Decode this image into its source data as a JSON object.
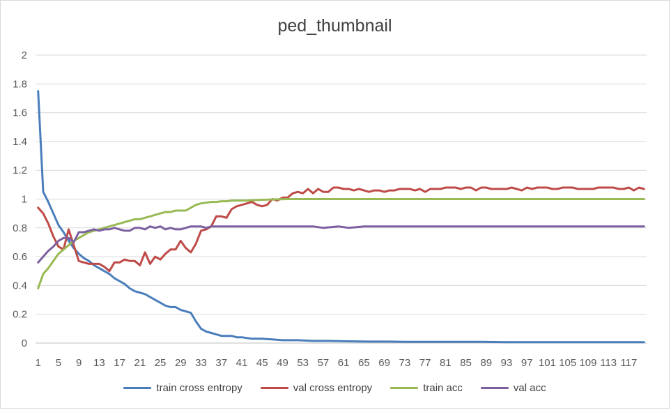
{
  "chart_data": {
    "type": "line",
    "title": "ped_thumbnail",
    "xlabel": "",
    "ylabel": "",
    "ylim": [
      0,
      2
    ],
    "yticks": [
      "0",
      "0.2",
      "0.4",
      "0.6",
      "0.8",
      "1",
      "1.2",
      "1.4",
      "1.6",
      "1.8",
      "2"
    ],
    "xtick_labels": [
      "1",
      "5",
      "9",
      "13",
      "17",
      "21",
      "25",
      "29",
      "33",
      "37",
      "41",
      "45",
      "49",
      "53",
      "57",
      "61",
      "65",
      "69",
      "73",
      "77",
      "81",
      "85",
      "89",
      "93",
      "97",
      "101",
      "105",
      "109",
      "113",
      "117"
    ],
    "x_start": 1,
    "x_end": 120,
    "grid": true,
    "legend_position": "bottom",
    "series": [
      {
        "name": "train cross entropy",
        "color": "#4a7ebb",
        "points": [
          [
            1,
            1.75
          ],
          [
            2,
            1.05
          ],
          [
            3,
            0.98
          ],
          [
            4,
            0.9
          ],
          [
            5,
            0.82
          ],
          [
            6,
            0.77
          ],
          [
            7,
            0.71
          ],
          [
            8,
            0.66
          ],
          [
            9,
            0.62
          ],
          [
            10,
            0.59
          ],
          [
            11,
            0.57
          ],
          [
            12,
            0.54
          ],
          [
            13,
            0.52
          ],
          [
            14,
            0.5
          ],
          [
            15,
            0.48
          ],
          [
            16,
            0.45
          ],
          [
            17,
            0.43
          ],
          [
            18,
            0.41
          ],
          [
            19,
            0.38
          ],
          [
            20,
            0.36
          ],
          [
            21,
            0.35
          ],
          [
            22,
            0.34
          ],
          [
            23,
            0.32
          ],
          [
            24,
            0.3
          ],
          [
            25,
            0.28
          ],
          [
            26,
            0.26
          ],
          [
            27,
            0.25
          ],
          [
            28,
            0.25
          ],
          [
            29,
            0.23
          ],
          [
            30,
            0.22
          ],
          [
            31,
            0.21
          ],
          [
            32,
            0.15
          ],
          [
            33,
            0.1
          ],
          [
            34,
            0.08
          ],
          [
            35,
            0.07
          ],
          [
            36,
            0.06
          ],
          [
            37,
            0.05
          ],
          [
            38,
            0.05
          ],
          [
            39,
            0.05
          ],
          [
            40,
            0.04
          ],
          [
            41,
            0.04
          ],
          [
            43,
            0.03
          ],
          [
            45,
            0.03
          ],
          [
            47,
            0.025
          ],
          [
            49,
            0.02
          ],
          [
            52,
            0.02
          ],
          [
            55,
            0.015
          ],
          [
            58,
            0.015
          ],
          [
            62,
            0.012
          ],
          [
            66,
            0.01
          ],
          [
            70,
            0.01
          ],
          [
            73,
            0.008
          ],
          [
            78,
            0.008
          ],
          [
            83,
            0.008
          ],
          [
            88,
            0.008
          ],
          [
            93,
            0.006
          ],
          [
            100,
            0.006
          ],
          [
            110,
            0.006
          ],
          [
            120,
            0.006
          ]
        ]
      },
      {
        "name": "val cross entropy",
        "color": "#be4b48",
        "points": [
          [
            1,
            0.94
          ],
          [
            2,
            0.9
          ],
          [
            3,
            0.83
          ],
          [
            4,
            0.74
          ],
          [
            5,
            0.67
          ],
          [
            6,
            0.65
          ],
          [
            7,
            0.79
          ],
          [
            8,
            0.68
          ],
          [
            9,
            0.57
          ],
          [
            10,
            0.56
          ],
          [
            11,
            0.55
          ],
          [
            12,
            0.55
          ],
          [
            13,
            0.55
          ],
          [
            14,
            0.53
          ],
          [
            15,
            0.5
          ],
          [
            16,
            0.56
          ],
          [
            17,
            0.56
          ],
          [
            18,
            0.58
          ],
          [
            19,
            0.57
          ],
          [
            20,
            0.57
          ],
          [
            21,
            0.54
          ],
          [
            22,
            0.63
          ],
          [
            23,
            0.55
          ],
          [
            24,
            0.6
          ],
          [
            25,
            0.58
          ],
          [
            26,
            0.62
          ],
          [
            27,
            0.65
          ],
          [
            28,
            0.65
          ],
          [
            29,
            0.71
          ],
          [
            30,
            0.66
          ],
          [
            31,
            0.63
          ],
          [
            32,
            0.69
          ],
          [
            33,
            0.78
          ],
          [
            34,
            0.79
          ],
          [
            35,
            0.81
          ],
          [
            36,
            0.88
          ],
          [
            37,
            0.88
          ],
          [
            38,
            0.87
          ],
          [
            39,
            0.93
          ],
          [
            40,
            0.95
          ],
          [
            41,
            0.96
          ],
          [
            42,
            0.97
          ],
          [
            43,
            0.98
          ],
          [
            44,
            0.96
          ],
          [
            45,
            0.95
          ],
          [
            46,
            0.96
          ],
          [
            47,
            1.0
          ],
          [
            48,
            0.99
          ],
          [
            49,
            1.01
          ],
          [
            50,
            1.01
          ],
          [
            51,
            1.04
          ],
          [
            52,
            1.05
          ],
          [
            53,
            1.04
          ],
          [
            54,
            1.07
          ],
          [
            55,
            1.04
          ],
          [
            56,
            1.07
          ],
          [
            57,
            1.05
          ],
          [
            58,
            1.05
          ],
          [
            59,
            1.08
          ],
          [
            60,
            1.08
          ],
          [
            61,
            1.07
          ],
          [
            62,
            1.07
          ],
          [
            63,
            1.06
          ],
          [
            64,
            1.07
          ],
          [
            65,
            1.06
          ],
          [
            66,
            1.05
          ],
          [
            67,
            1.06
          ],
          [
            68,
            1.06
          ],
          [
            69,
            1.05
          ],
          [
            70,
            1.06
          ],
          [
            71,
            1.06
          ],
          [
            72,
            1.07
          ],
          [
            73,
            1.07
          ],
          [
            74,
            1.07
          ],
          [
            75,
            1.06
          ],
          [
            76,
            1.07
          ],
          [
            77,
            1.05
          ],
          [
            78,
            1.07
          ],
          [
            79,
            1.07
          ],
          [
            80,
            1.07
          ],
          [
            81,
            1.08
          ],
          [
            82,
            1.08
          ],
          [
            83,
            1.08
          ],
          [
            84,
            1.07
          ],
          [
            85,
            1.08
          ],
          [
            86,
            1.08
          ],
          [
            87,
            1.06
          ],
          [
            88,
            1.08
          ],
          [
            89,
            1.08
          ],
          [
            90,
            1.07
          ],
          [
            91,
            1.07
          ],
          [
            92,
            1.07
          ],
          [
            93,
            1.07
          ],
          [
            94,
            1.08
          ],
          [
            95,
            1.07
          ],
          [
            96,
            1.06
          ],
          [
            97,
            1.08
          ],
          [
            98,
            1.07
          ],
          [
            99,
            1.08
          ],
          [
            100,
            1.08
          ],
          [
            101,
            1.08
          ],
          [
            102,
            1.07
          ],
          [
            103,
            1.07
          ],
          [
            104,
            1.08
          ],
          [
            105,
            1.08
          ],
          [
            106,
            1.08
          ],
          [
            107,
            1.07
          ],
          [
            108,
            1.07
          ],
          [
            109,
            1.07
          ],
          [
            110,
            1.07
          ],
          [
            111,
            1.08
          ],
          [
            112,
            1.08
          ],
          [
            113,
            1.08
          ],
          [
            114,
            1.08
          ],
          [
            115,
            1.07
          ],
          [
            116,
            1.07
          ],
          [
            117,
            1.08
          ],
          [
            118,
            1.06
          ],
          [
            119,
            1.08
          ],
          [
            120,
            1.07
          ]
        ]
      },
      {
        "name": "train acc",
        "color": "#98b954",
        "points": [
          [
            1,
            0.38
          ],
          [
            2,
            0.48
          ],
          [
            3,
            0.52
          ],
          [
            4,
            0.57
          ],
          [
            5,
            0.62
          ],
          [
            6,
            0.65
          ],
          [
            7,
            0.68
          ],
          [
            8,
            0.71
          ],
          [
            9,
            0.73
          ],
          [
            10,
            0.75
          ],
          [
            11,
            0.77
          ],
          [
            12,
            0.78
          ],
          [
            13,
            0.79
          ],
          [
            14,
            0.8
          ],
          [
            15,
            0.81
          ],
          [
            16,
            0.82
          ],
          [
            17,
            0.83
          ],
          [
            18,
            0.84
          ],
          [
            19,
            0.85
          ],
          [
            20,
            0.86
          ],
          [
            21,
            0.86
          ],
          [
            22,
            0.87
          ],
          [
            23,
            0.88
          ],
          [
            24,
            0.89
          ],
          [
            25,
            0.9
          ],
          [
            26,
            0.91
          ],
          [
            27,
            0.91
          ],
          [
            28,
            0.92
          ],
          [
            29,
            0.92
          ],
          [
            30,
            0.92
          ],
          [
            31,
            0.94
          ],
          [
            32,
            0.96
          ],
          [
            33,
            0.97
          ],
          [
            34,
            0.975
          ],
          [
            35,
            0.98
          ],
          [
            36,
            0.98
          ],
          [
            37,
            0.985
          ],
          [
            38,
            0.985
          ],
          [
            39,
            0.99
          ],
          [
            40,
            0.99
          ],
          [
            42,
            0.99
          ],
          [
            45,
            0.995
          ],
          [
            50,
            1.0
          ],
          [
            60,
            1.0
          ],
          [
            70,
            1.0
          ],
          [
            80,
            1.0
          ],
          [
            90,
            1.0
          ],
          [
            100,
            1.0
          ],
          [
            110,
            1.0
          ],
          [
            120,
            1.0
          ]
        ]
      },
      {
        "name": "val acc",
        "color": "#7d60a0",
        "points": [
          [
            1,
            0.56
          ],
          [
            2,
            0.6
          ],
          [
            3,
            0.64
          ],
          [
            4,
            0.67
          ],
          [
            5,
            0.71
          ],
          [
            6,
            0.73
          ],
          [
            7,
            0.73
          ],
          [
            8,
            0.7
          ],
          [
            9,
            0.77
          ],
          [
            10,
            0.77
          ],
          [
            11,
            0.78
          ],
          [
            12,
            0.79
          ],
          [
            13,
            0.78
          ],
          [
            14,
            0.79
          ],
          [
            15,
            0.79
          ],
          [
            16,
            0.8
          ],
          [
            17,
            0.79
          ],
          [
            18,
            0.78
          ],
          [
            19,
            0.78
          ],
          [
            20,
            0.8
          ],
          [
            21,
            0.8
          ],
          [
            22,
            0.79
          ],
          [
            23,
            0.81
          ],
          [
            24,
            0.8
          ],
          [
            25,
            0.81
          ],
          [
            26,
            0.79
          ],
          [
            27,
            0.8
          ],
          [
            28,
            0.79
          ],
          [
            29,
            0.79
          ],
          [
            30,
            0.8
          ],
          [
            31,
            0.81
          ],
          [
            32,
            0.81
          ],
          [
            33,
            0.81
          ],
          [
            34,
            0.8
          ],
          [
            35,
            0.81
          ],
          [
            36,
            0.81
          ],
          [
            40,
            0.81
          ],
          [
            45,
            0.81
          ],
          [
            50,
            0.81
          ],
          [
            55,
            0.81
          ],
          [
            57,
            0.8
          ],
          [
            60,
            0.81
          ],
          [
            62,
            0.8
          ],
          [
            65,
            0.81
          ],
          [
            70,
            0.81
          ],
          [
            75,
            0.81
          ],
          [
            80,
            0.81
          ],
          [
            85,
            0.81
          ],
          [
            90,
            0.81
          ],
          [
            95,
            0.81
          ],
          [
            100,
            0.81
          ],
          [
            105,
            0.81
          ],
          [
            110,
            0.81
          ],
          [
            115,
            0.81
          ],
          [
            120,
            0.81
          ]
        ]
      }
    ]
  }
}
